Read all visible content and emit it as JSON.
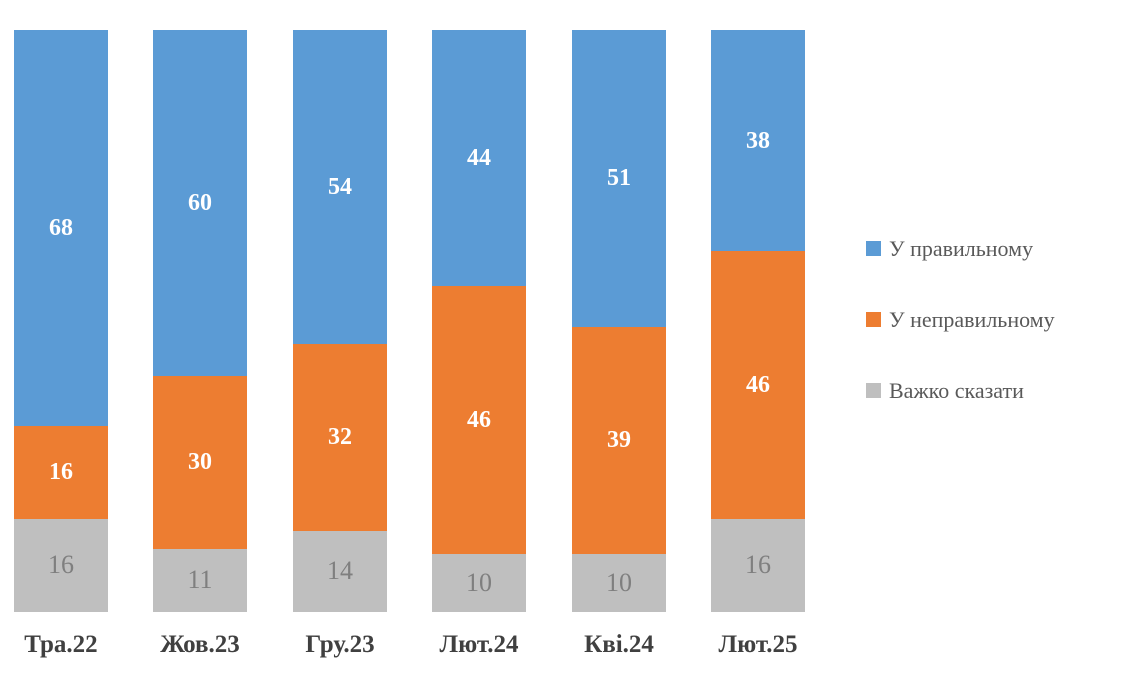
{
  "chart_data": {
    "type": "bar",
    "stacked": true,
    "orientation": "vertical",
    "title": "",
    "xlabel": "",
    "ylabel": "",
    "gridlines": false,
    "y_axis_visible": false,
    "legend_position": "right",
    "categories": [
      "Тра.22",
      "Жов.23",
      "Гру.23",
      "Лют.24",
      "Кві.24",
      "Лют.25"
    ],
    "series": [
      {
        "name": "У правильному",
        "color": "#5B9BD5",
        "label_color": "#FFFFFF",
        "label_style": "bold",
        "values": [
          68,
          60,
          54,
          44,
          51,
          38
        ]
      },
      {
        "name": "У неправильному",
        "color": "#ED7D31",
        "label_color": "#FFFFFF",
        "label_style": "bold",
        "values": [
          16,
          30,
          32,
          46,
          39,
          46
        ]
      },
      {
        "name": "Важко сказати",
        "color": "#BFBFBF",
        "label_color": "#7F7F7F",
        "label_style": "normal",
        "values": [
          16,
          11,
          14,
          10,
          10,
          16
        ]
      }
    ]
  },
  "colors": {
    "background": "#FFFFFF",
    "category_label": "#404040",
    "legend_text": "#595959"
  }
}
